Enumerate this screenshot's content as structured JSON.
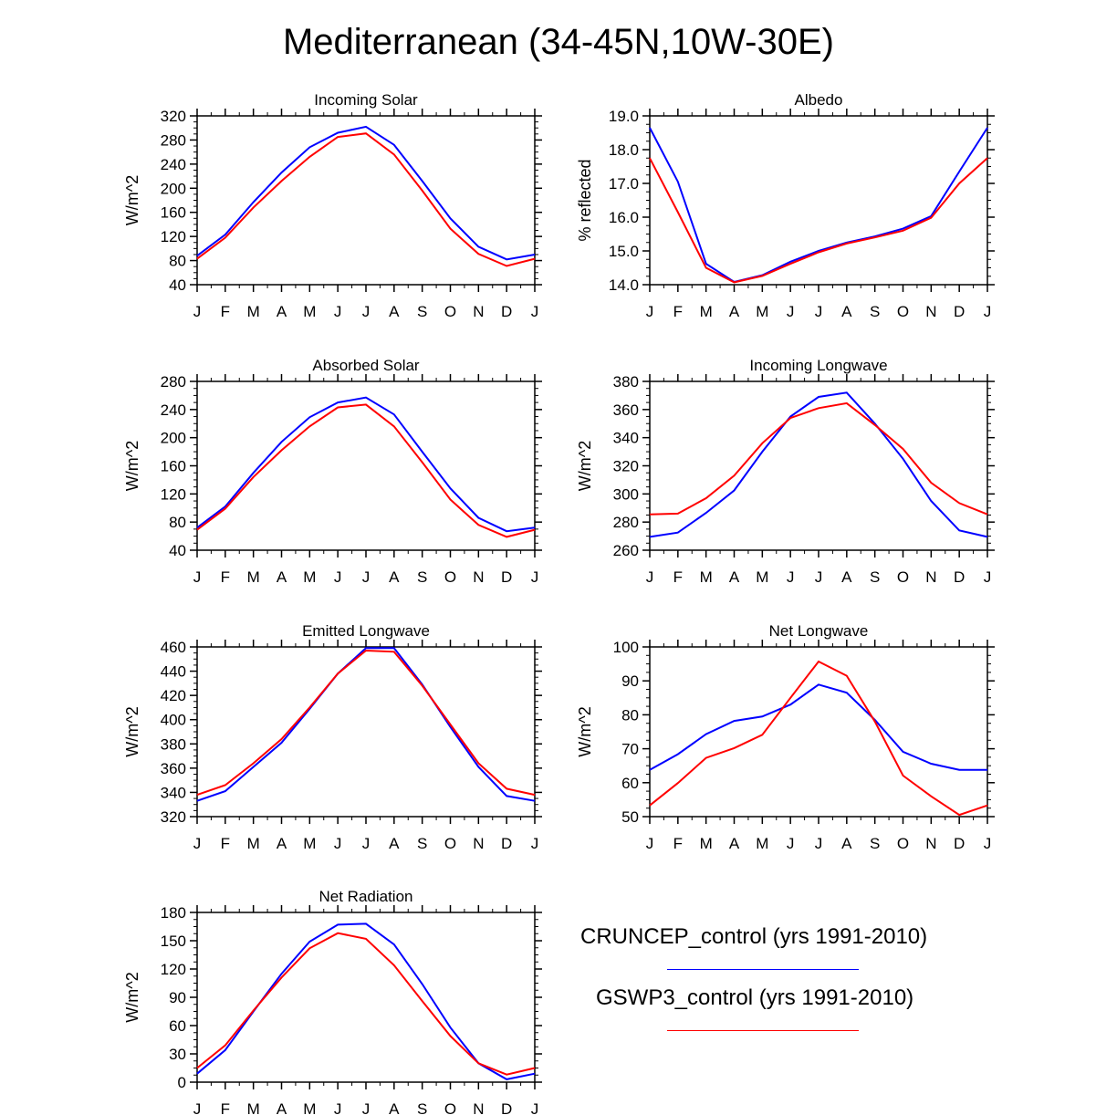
{
  "title": "Mediterranean (34-45N,10W-30E)",
  "legend": {
    "entries": [
      {
        "label": "CRUNCEP_control (yrs 1991-2010)",
        "color": "#0000ff"
      },
      {
        "label": "GSWP3_control (yrs 1991-2010)",
        "color": "#ff0000"
      }
    ]
  },
  "chart_data": [
    {
      "type": "line",
      "title": "Incoming Solar",
      "ylabel": "W/m^2",
      "x": [
        "J",
        "F",
        "M",
        "A",
        "M",
        "J",
        "J",
        "A",
        "S",
        "O",
        "N",
        "D",
        "J"
      ],
      "ylim": [
        40,
        320
      ],
      "yticks": [
        40,
        80,
        120,
        160,
        200,
        240,
        280,
        320
      ],
      "ytick_labels": [
        "40",
        "80",
        "120",
        "160",
        "200",
        "240",
        "280",
        "320"
      ],
      "series": [
        {
          "name": "CRUNCEP_control (yrs 1991-2010)",
          "color": "#0000ff",
          "values": [
            88,
            123,
            177,
            226,
            268,
            292,
            302,
            272,
            212,
            150,
            103,
            82,
            90
          ]
        },
        {
          "name": "GSWP3_control (yrs 1991-2010)",
          "color": "#ff0000",
          "values": [
            83,
            118,
            168,
            212,
            252,
            285,
            291,
            256,
            196,
            133,
            91,
            71,
            83
          ]
        }
      ]
    },
    {
      "type": "line",
      "title": "Albedo",
      "ylabel": "% reflected",
      "x": [
        "J",
        "F",
        "M",
        "A",
        "M",
        "J",
        "J",
        "A",
        "S",
        "O",
        "N",
        "D",
        "J"
      ],
      "ylim": [
        14.0,
        19.0
      ],
      "yticks": [
        14,
        15,
        16,
        17,
        18,
        19
      ],
      "ytick_labels": [
        "14.0",
        "15.0",
        "16.0",
        "17.0",
        "18.0",
        "19.0"
      ],
      "series": [
        {
          "name": "CRUNCEP_control (yrs 1991-2010)",
          "color": "#0000ff",
          "values": [
            18.65,
            17.05,
            14.62,
            14.08,
            14.28,
            14.68,
            15.0,
            15.25,
            15.43,
            15.66,
            16.03,
            17.35,
            18.65
          ]
        },
        {
          "name": "GSWP3_control (yrs 1991-2010)",
          "color": "#ff0000",
          "values": [
            17.75,
            16.15,
            14.5,
            14.07,
            14.26,
            14.62,
            14.96,
            15.22,
            15.4,
            15.6,
            15.98,
            17.0,
            17.75
          ]
        }
      ]
    },
    {
      "type": "line",
      "title": "Absorbed Solar",
      "ylabel": "W/m^2",
      "x": [
        "J",
        "F",
        "M",
        "A",
        "M",
        "J",
        "J",
        "A",
        "S",
        "O",
        "N",
        "D",
        "J"
      ],
      "ylim": [
        40,
        280
      ],
      "yticks": [
        40,
        80,
        120,
        160,
        200,
        240,
        280
      ],
      "ytick_labels": [
        "40",
        "80",
        "120",
        "160",
        "200",
        "240",
        "280"
      ],
      "series": [
        {
          "name": "CRUNCEP_control (yrs 1991-2010)",
          "color": "#0000ff",
          "values": [
            72,
            102,
            150,
            194,
            229,
            250,
            257,
            233,
            180,
            128,
            86,
            67,
            72
          ]
        },
        {
          "name": "GSWP3_control (yrs 1991-2010)",
          "color": "#ff0000",
          "values": [
            69,
            99,
            144,
            182,
            216,
            243,
            247,
            216,
            165,
            112,
            76,
            59,
            69
          ]
        }
      ]
    },
    {
      "type": "line",
      "title": "Incoming Longwave",
      "ylabel": "W/m^2",
      "x": [
        "J",
        "F",
        "M",
        "A",
        "M",
        "J",
        "J",
        "A",
        "S",
        "O",
        "N",
        "D",
        "J"
      ],
      "ylim": [
        260,
        380
      ],
      "yticks": [
        260,
        280,
        300,
        320,
        340,
        360,
        380
      ],
      "ytick_labels": [
        "260",
        "280",
        "300",
        "320",
        "340",
        "360",
        "380"
      ],
      "series": [
        {
          "name": "CRUNCEP_control (yrs 1991-2010)",
          "color": "#0000ff",
          "values": [
            269.5,
            272.5,
            286.5,
            302.5,
            330,
            355,
            369,
            372,
            350,
            325,
            295,
            274,
            269.5
          ]
        },
        {
          "name": "GSWP3_control (yrs 1991-2010)",
          "color": "#ff0000",
          "values": [
            285.5,
            286,
            297,
            313,
            336,
            354,
            361,
            364.5,
            349,
            332,
            308,
            293.5,
            285.5
          ]
        }
      ]
    },
    {
      "type": "line",
      "title": "Emitted Longwave",
      "ylabel": "W/m^2",
      "x": [
        "J",
        "F",
        "M",
        "A",
        "M",
        "J",
        "J",
        "A",
        "S",
        "O",
        "N",
        "D",
        "J"
      ],
      "ylim": [
        320,
        460
      ],
      "yticks": [
        320,
        340,
        360,
        380,
        400,
        420,
        440,
        460
      ],
      "ytick_labels": [
        "320",
        "340",
        "360",
        "380",
        "400",
        "420",
        "440",
        "460"
      ],
      "series": [
        {
          "name": "CRUNCEP_control (yrs 1991-2010)",
          "color": "#0000ff",
          "values": [
            333,
            341,
            361,
            381,
            409,
            438,
            459,
            459,
            429,
            394,
            361,
            337,
            333
          ]
        },
        {
          "name": "GSWP3_control (yrs 1991-2010)",
          "color": "#ff0000",
          "values": [
            338,
            346,
            364,
            384,
            410,
            438,
            457,
            456,
            428,
            396,
            364,
            343,
            338
          ]
        }
      ]
    },
    {
      "type": "line",
      "title": "Net Longwave",
      "ylabel": "W/m^2",
      "x": [
        "J",
        "F",
        "M",
        "A",
        "M",
        "J",
        "J",
        "A",
        "S",
        "O",
        "N",
        "D",
        "J"
      ],
      "ylim": [
        50,
        100
      ],
      "yticks": [
        50,
        60,
        70,
        80,
        90,
        100
      ],
      "ytick_labels": [
        "50",
        "60",
        "70",
        "80",
        "90",
        "100"
      ],
      "series": [
        {
          "name": "CRUNCEP_control (yrs 1991-2010)",
          "color": "#0000ff",
          "values": [
            63.8,
            68.4,
            74.3,
            78.2,
            79.5,
            83,
            88.9,
            86.5,
            78.5,
            69.1,
            65.6,
            63.8,
            63.8
          ]
        },
        {
          "name": "GSWP3_control (yrs 1991-2010)",
          "color": "#ff0000",
          "values": [
            53.3,
            59.9,
            67.3,
            70.2,
            74.1,
            85,
            95.7,
            91.5,
            78,
            62.1,
            56,
            50.5,
            53.3
          ]
        }
      ]
    },
    {
      "type": "line",
      "title": "Net Radiation",
      "ylabel": "W/m^2",
      "x": [
        "J",
        "F",
        "M",
        "A",
        "M",
        "J",
        "J",
        "A",
        "S",
        "O",
        "N",
        "D",
        "J"
      ],
      "ylim": [
        0,
        180
      ],
      "yticks": [
        0,
        30,
        60,
        90,
        120,
        150,
        180
      ],
      "ytick_labels": [
        "0",
        "30",
        "60",
        "90",
        "120",
        "150",
        "180"
      ],
      "series": [
        {
          "name": "CRUNCEP_control (yrs 1991-2010)",
          "color": "#0000ff",
          "values": [
            9,
            34,
            75,
            115,
            149,
            167,
            168,
            146,
            104,
            58,
            20,
            3,
            9
          ]
        },
        {
          "name": "GSWP3_control (yrs 1991-2010)",
          "color": "#ff0000",
          "values": [
            15,
            39,
            76,
            111,
            142,
            158,
            152,
            124,
            86,
            49,
            20,
            8,
            15
          ]
        }
      ]
    }
  ]
}
